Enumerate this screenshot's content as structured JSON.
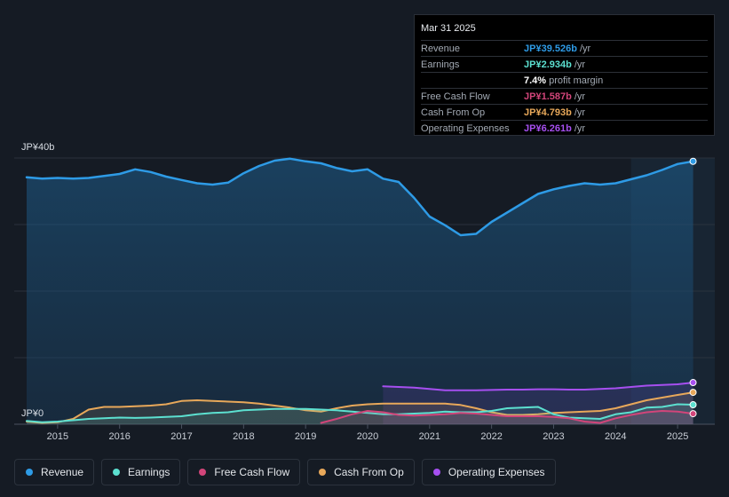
{
  "tooltip": {
    "date": "Mar 31 2025",
    "rows": [
      {
        "label": "Revenue",
        "value": "JP¥39.526b",
        "unit": "/yr",
        "color": "#2e9be6"
      },
      {
        "label": "Earnings",
        "value": "JP¥2.934b",
        "unit": "/yr",
        "color": "#5ce0d0"
      },
      {
        "label": "",
        "value": "7.4%",
        "unit": "profit margin",
        "color": "#ffffff"
      },
      {
        "label": "Free Cash Flow",
        "value": "JP¥1.587b",
        "unit": "/yr",
        "color": "#d2457a"
      },
      {
        "label": "Cash From Op",
        "value": "JP¥4.793b",
        "unit": "/yr",
        "color": "#e8a85a"
      },
      {
        "label": "Operating Expenses",
        "value": "JP¥6.261b",
        "unit": "/yr",
        "color": "#a64ff0"
      }
    ]
  },
  "legend": [
    {
      "label": "Revenue",
      "color": "#2e9be6"
    },
    {
      "label": "Earnings",
      "color": "#5ce0d0"
    },
    {
      "label": "Free Cash Flow",
      "color": "#d2457a"
    },
    {
      "label": "Cash From Op",
      "color": "#e8a85a"
    },
    {
      "label": "Operating Expenses",
      "color": "#a64ff0"
    }
  ],
  "chart_data": {
    "type": "area",
    "y_unit": "JP¥ billions",
    "ylim": [
      0,
      40
    ],
    "y_tick_labels": {
      "top": "JP¥40b",
      "bottom": "JP¥0"
    },
    "x_tick_labels": [
      "2015",
      "2016",
      "2017",
      "2018",
      "2019",
      "2020",
      "2021",
      "2022",
      "2023",
      "2024",
      "2025"
    ],
    "x_range": [
      2014.3,
      2025.6
    ],
    "highlight_start": 2024.25,
    "series": [
      {
        "name": "Revenue",
        "color": "#2e9be6",
        "fill": true,
        "x": [
          2014.5,
          2014.75,
          2015.0,
          2015.25,
          2015.5,
          2015.75,
          2016.0,
          2016.25,
          2016.5,
          2016.75,
          2017.0,
          2017.25,
          2017.5,
          2017.75,
          2018.0,
          2018.25,
          2018.5,
          2018.75,
          2019.0,
          2019.25,
          2019.5,
          2019.75,
          2020.0,
          2020.25,
          2020.5,
          2020.75,
          2021.0,
          2021.25,
          2021.5,
          2021.75,
          2022.0,
          2022.25,
          2022.5,
          2022.75,
          2023.0,
          2023.25,
          2023.5,
          2023.75,
          2024.0,
          2024.25,
          2024.5,
          2024.75,
          2025.0,
          2025.25
        ],
        "values": [
          37.1,
          36.9,
          37.0,
          36.9,
          37.0,
          37.3,
          37.6,
          38.3,
          37.9,
          37.2,
          36.7,
          36.2,
          36.0,
          36.3,
          37.7,
          38.8,
          39.6,
          39.9,
          39.5,
          39.2,
          38.5,
          38.0,
          38.3,
          36.9,
          36.4,
          34.0,
          31.2,
          29.9,
          28.4,
          28.6,
          30.4,
          31.8,
          33.2,
          34.6,
          35.3,
          35.8,
          36.2,
          36.0,
          36.2,
          36.8,
          37.4,
          38.2,
          39.1,
          39.5
        ]
      },
      {
        "name": "Operating Expenses",
        "color": "#a64ff0",
        "fill": true,
        "x": [
          2020.25,
          2020.5,
          2020.75,
          2021.0,
          2021.25,
          2021.5,
          2021.75,
          2022.0,
          2022.25,
          2022.5,
          2022.75,
          2023.0,
          2023.25,
          2023.5,
          2023.75,
          2024.0,
          2024.25,
          2024.5,
          2024.75,
          2025.0,
          2025.25
        ],
        "values": [
          5.7,
          5.6,
          5.5,
          5.3,
          5.1,
          5.1,
          5.1,
          5.15,
          5.2,
          5.2,
          5.25,
          5.25,
          5.2,
          5.2,
          5.3,
          5.4,
          5.6,
          5.8,
          5.9,
          6.0,
          6.26
        ]
      },
      {
        "name": "Cash From Op",
        "color": "#e8a85a",
        "fill": true,
        "x": [
          2014.5,
          2014.75,
          2015.0,
          2015.25,
          2015.5,
          2015.75,
          2016.0,
          2016.25,
          2016.5,
          2016.75,
          2017.0,
          2017.25,
          2017.5,
          2017.75,
          2018.0,
          2018.25,
          2018.5,
          2018.75,
          2019.0,
          2019.25,
          2019.5,
          2019.75,
          2020.0,
          2020.25,
          2020.5,
          2020.75,
          2021.0,
          2021.25,
          2021.5,
          2021.75,
          2022.0,
          2022.25,
          2022.5,
          2022.75,
          2023.0,
          2023.25,
          2023.5,
          2023.75,
          2024.0,
          2024.25,
          2024.5,
          2024.75,
          2025.0,
          2025.25
        ],
        "values": [
          0.4,
          0.2,
          0.3,
          0.8,
          2.2,
          2.6,
          2.6,
          2.7,
          2.8,
          3.0,
          3.5,
          3.6,
          3.5,
          3.4,
          3.3,
          3.1,
          2.8,
          2.5,
          2.1,
          1.9,
          2.4,
          2.8,
          3.0,
          3.1,
          3.1,
          3.1,
          3.1,
          3.1,
          2.9,
          2.4,
          1.8,
          1.4,
          1.4,
          1.5,
          1.7,
          1.8,
          1.9,
          2.0,
          2.4,
          3.0,
          3.6,
          4.0,
          4.4,
          4.79
        ]
      },
      {
        "name": "Earnings",
        "color": "#5ce0d0",
        "fill": true,
        "x": [
          2014.5,
          2014.75,
          2015.0,
          2015.25,
          2015.5,
          2015.75,
          2016.0,
          2016.25,
          2016.5,
          2016.75,
          2017.0,
          2017.25,
          2017.5,
          2017.75,
          2018.0,
          2018.25,
          2018.5,
          2018.75,
          2019.0,
          2019.25,
          2019.5,
          2019.75,
          2020.0,
          2020.25,
          2020.5,
          2020.75,
          2021.0,
          2021.25,
          2021.5,
          2021.75,
          2022.0,
          2022.25,
          2022.5,
          2022.75,
          2023.0,
          2023.25,
          2023.5,
          2023.75,
          2024.0,
          2024.25,
          2024.5,
          2024.75,
          2025.0,
          2025.25
        ],
        "values": [
          0.5,
          0.3,
          0.4,
          0.6,
          0.8,
          0.9,
          1.0,
          0.95,
          1.0,
          1.1,
          1.2,
          1.5,
          1.7,
          1.8,
          2.1,
          2.2,
          2.3,
          2.3,
          2.3,
          2.2,
          2.1,
          1.9,
          1.7,
          1.5,
          1.5,
          1.6,
          1.7,
          1.9,
          1.8,
          1.8,
          2.0,
          2.4,
          2.5,
          2.6,
          1.5,
          1.0,
          0.9,
          0.8,
          1.5,
          1.8,
          2.5,
          2.6,
          3.0,
          2.93
        ]
      },
      {
        "name": "Free Cash Flow",
        "color": "#d2457a",
        "fill": true,
        "x": [
          2019.25,
          2019.5,
          2019.75,
          2020.0,
          2020.25,
          2020.5,
          2020.75,
          2021.0,
          2021.25,
          2021.5,
          2021.75,
          2022.0,
          2022.25,
          2022.5,
          2022.75,
          2023.0,
          2023.25,
          2023.5,
          2023.75,
          2024.0,
          2024.25,
          2024.5,
          2024.75,
          2025.0,
          2025.25
        ],
        "values": [
          0.2,
          0.8,
          1.5,
          2.0,
          1.8,
          1.4,
          1.3,
          1.4,
          1.5,
          1.7,
          1.6,
          1.4,
          1.2,
          1.2,
          1.2,
          1.1,
          0.9,
          0.4,
          0.2,
          0.9,
          1.4,
          1.8,
          2.0,
          1.9,
          1.59
        ]
      }
    ]
  }
}
